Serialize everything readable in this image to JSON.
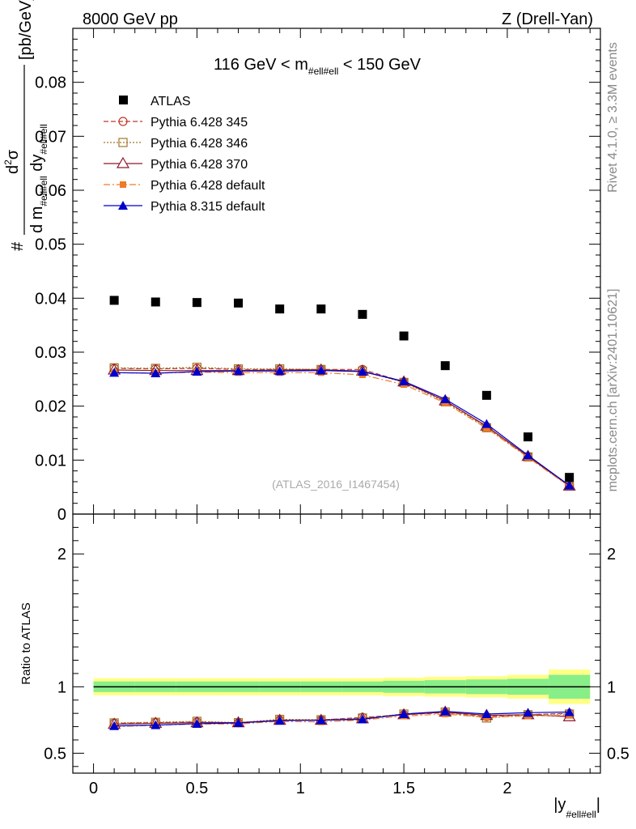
{
  "header": {
    "left": "8000 GeV pp",
    "right": "Z (Drell-Yan)"
  },
  "side_text": {
    "rivet": "Rivet 4.1.0, ≥ 3.3M events",
    "mcplots": "mcplots.cern.ch [arXiv:2401.10621]"
  },
  "plot_title": {
    "pre": "116 GeV < m",
    "sub": "#ell#ell",
    "post": " < 150 GeV"
  },
  "ylabel": {
    "num_d": "d",
    "num_sup": "2",
    "num_sigma": "σ",
    "den_d": "d m",
    "den_sub1": "#ell#ell",
    "den_dy": " dy",
    "den_sub2": "#ell#ell",
    "hash": "#",
    "unit": "[pb/GeV]"
  },
  "watermark": "(ATLAS_2016_I1467454)",
  "ratio_ylabel": "Ratio to ATLAS",
  "xlabel": {
    "pre": "|y",
    "sub": "#ell#ell",
    "post": "|"
  },
  "colors": {
    "atlas": "#000000",
    "p345": "#c0392b",
    "p346": "#a0782a",
    "p370": "#8b1a2b",
    "p6def": "#f07a2a",
    "p8def": "#0000cc",
    "band_outer": "#ffff88",
    "band_inner": "#88ee88"
  },
  "chart_data": {
    "type": "line",
    "x": [
      0.1,
      0.3,
      0.5,
      0.7,
      0.9,
      1.1,
      1.3,
      1.5,
      1.7,
      1.9,
      2.1,
      2.3
    ],
    "bin_edges": [
      0,
      0.2,
      0.4,
      0.6,
      0.8,
      1.0,
      1.2,
      1.4,
      1.6,
      1.8,
      2.0,
      2.2,
      2.4
    ],
    "xlim": [
      -0.1,
      2.45
    ],
    "top_ylim": [
      0,
      0.09
    ],
    "top_yticks": [
      0,
      0.01,
      0.02,
      0.03,
      0.04,
      0.05,
      0.06,
      0.07,
      0.08
    ],
    "top_ytick_labels": [
      "0",
      "0.01",
      "0.02",
      "0.03",
      "0.04",
      "0.05",
      "0.06",
      "0.07",
      "0.08"
    ],
    "ratio_ylim": [
      0.35,
      2.3
    ],
    "ratio_yticks": [
      0.5,
      1,
      2
    ],
    "ratio_ytick_labels": [
      "0.5",
      "1",
      "2"
    ],
    "xticks": [
      0,
      0.5,
      1,
      1.5,
      2
    ],
    "xtick_labels": [
      "0",
      "0.5",
      "1",
      "1.5",
      "2"
    ],
    "data": {
      "name": "ATLAS",
      "values": [
        0.0396,
        0.0393,
        0.0392,
        0.0391,
        0.038,
        0.038,
        0.037,
        0.033,
        0.0275,
        0.022,
        0.0143,
        0.0068
      ]
    },
    "band_outer": [
      0.065,
      0.065,
      0.065,
      0.065,
      0.065,
      0.065,
      0.065,
      0.07,
      0.075,
      0.08,
      0.09,
      0.13
    ],
    "band_inner": [
      0.04,
      0.04,
      0.04,
      0.04,
      0.04,
      0.04,
      0.04,
      0.045,
      0.05,
      0.055,
      0.06,
      0.09
    ],
    "series": [
      {
        "name": "Pythia 6.428 345",
        "marker": "circle-open",
        "dash": "6,3",
        "values": [
          0.027,
          0.0269,
          0.027,
          0.0268,
          0.0268,
          0.0268,
          0.0268,
          0.0245,
          0.021,
          0.0162,
          0.0107,
          0.0053
        ]
      },
      {
        "name": "Pythia 6.428 346",
        "marker": "square-open",
        "dash": "2,2",
        "values": [
          0.0271,
          0.027,
          0.0272,
          0.0269,
          0.0269,
          0.0268,
          0.0265,
          0.0244,
          0.0208,
          0.016,
          0.0106,
          0.0052
        ]
      },
      {
        "name": "Pythia 6.428 370",
        "marker": "triangle-open",
        "dash": "",
        "values": [
          0.0267,
          0.0266,
          0.0266,
          0.0266,
          0.0267,
          0.0267,
          0.0265,
          0.0245,
          0.021,
          0.0163,
          0.0107,
          0.0052
        ]
      },
      {
        "name": "Pythia 6.428 default",
        "marker": "square-filled",
        "dash": "8,3,2,3",
        "values": [
          0.0262,
          0.0261,
          0.0263,
          0.0262,
          0.0262,
          0.0262,
          0.0258,
          0.024,
          0.0206,
          0.0159,
          0.0105,
          0.0051
        ]
      },
      {
        "name": "Pythia 8.315 default",
        "marker": "triangle-filled",
        "dash": "",
        "values": [
          0.0262,
          0.0261,
          0.0264,
          0.0265,
          0.0265,
          0.0266,
          0.0264,
          0.0246,
          0.0213,
          0.0167,
          0.0109,
          0.0053
        ]
      }
    ],
    "ratio_series": [
      {
        "name": "Pythia 6.428 345",
        "values": [
          0.725,
          0.73,
          0.735,
          0.728,
          0.75,
          0.75,
          0.77,
          0.79,
          0.805,
          0.775,
          0.79,
          0.8
        ]
      },
      {
        "name": "Pythia 6.428 346",
        "values": [
          0.728,
          0.733,
          0.74,
          0.73,
          0.755,
          0.752,
          0.765,
          0.795,
          0.81,
          0.765,
          0.79,
          0.795
        ]
      },
      {
        "name": "Pythia 6.428 370",
        "values": [
          0.718,
          0.725,
          0.73,
          0.73,
          0.748,
          0.748,
          0.76,
          0.79,
          0.81,
          0.785,
          0.79,
          0.775
        ]
      },
      {
        "name": "Pythia 6.428 default",
        "values": [
          0.7,
          0.71,
          0.72,
          0.72,
          0.74,
          0.735,
          0.75,
          0.78,
          0.795,
          0.77,
          0.78,
          0.785
        ]
      },
      {
        "name": "Pythia 8.315 default",
        "values": [
          0.705,
          0.712,
          0.722,
          0.728,
          0.745,
          0.748,
          0.755,
          0.795,
          0.815,
          0.795,
          0.805,
          0.81
        ]
      }
    ]
  }
}
